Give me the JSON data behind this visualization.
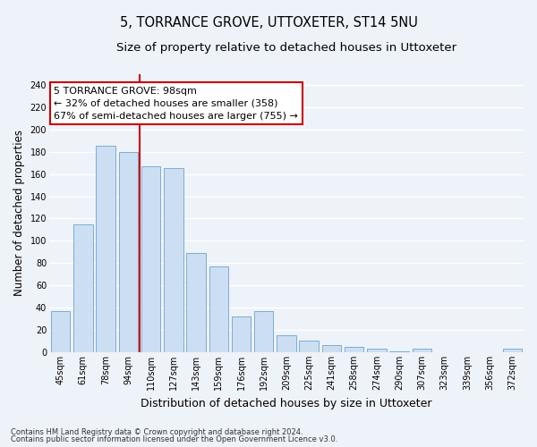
{
  "title": "5, TORRANCE GROVE, UTTOXETER, ST14 5NU",
  "subtitle": "Size of property relative to detached houses in Uttoxeter",
  "xlabel": "Distribution of detached houses by size in Uttoxeter",
  "ylabel": "Number of detached properties",
  "categories": [
    "45sqm",
    "61sqm",
    "78sqm",
    "94sqm",
    "110sqm",
    "127sqm",
    "143sqm",
    "159sqm",
    "176sqm",
    "192sqm",
    "209sqm",
    "225sqm",
    "241sqm",
    "258sqm",
    "274sqm",
    "290sqm",
    "307sqm",
    "323sqm",
    "339sqm",
    "356sqm",
    "372sqm"
  ],
  "bar_heights": [
    37,
    115,
    185,
    180,
    167,
    165,
    89,
    77,
    32,
    37,
    15,
    10,
    6,
    5,
    3,
    1,
    3,
    0,
    0,
    0,
    3
  ],
  "bar_color": "#ccdff2",
  "bar_edge_color": "#7aadd4",
  "vline_pos": 3.5,
  "vline_color": "#cc0000",
  "annotation_text": "5 TORRANCE GROVE: 98sqm\n← 32% of detached houses are smaller (358)\n67% of semi-detached houses are larger (755) →",
  "annotation_box_color": "#ffffff",
  "annotation_box_edge": "#cc0000",
  "footnote1": "Contains HM Land Registry data © Crown copyright and database right 2024.",
  "footnote2": "Contains public sector information licensed under the Open Government Licence v3.0.",
  "ylim": [
    0,
    250
  ],
  "yticks": [
    0,
    20,
    40,
    60,
    80,
    100,
    120,
    140,
    160,
    180,
    200,
    220,
    240
  ],
  "background_color": "#eef2f9",
  "grid_color": "#ffffff",
  "title_fontsize": 10.5,
  "subtitle_fontsize": 9.5,
  "xlabel_fontsize": 9,
  "ylabel_fontsize": 8.5,
  "tick_fontsize": 7,
  "annot_fontsize": 8,
  "footnote_fontsize": 6
}
